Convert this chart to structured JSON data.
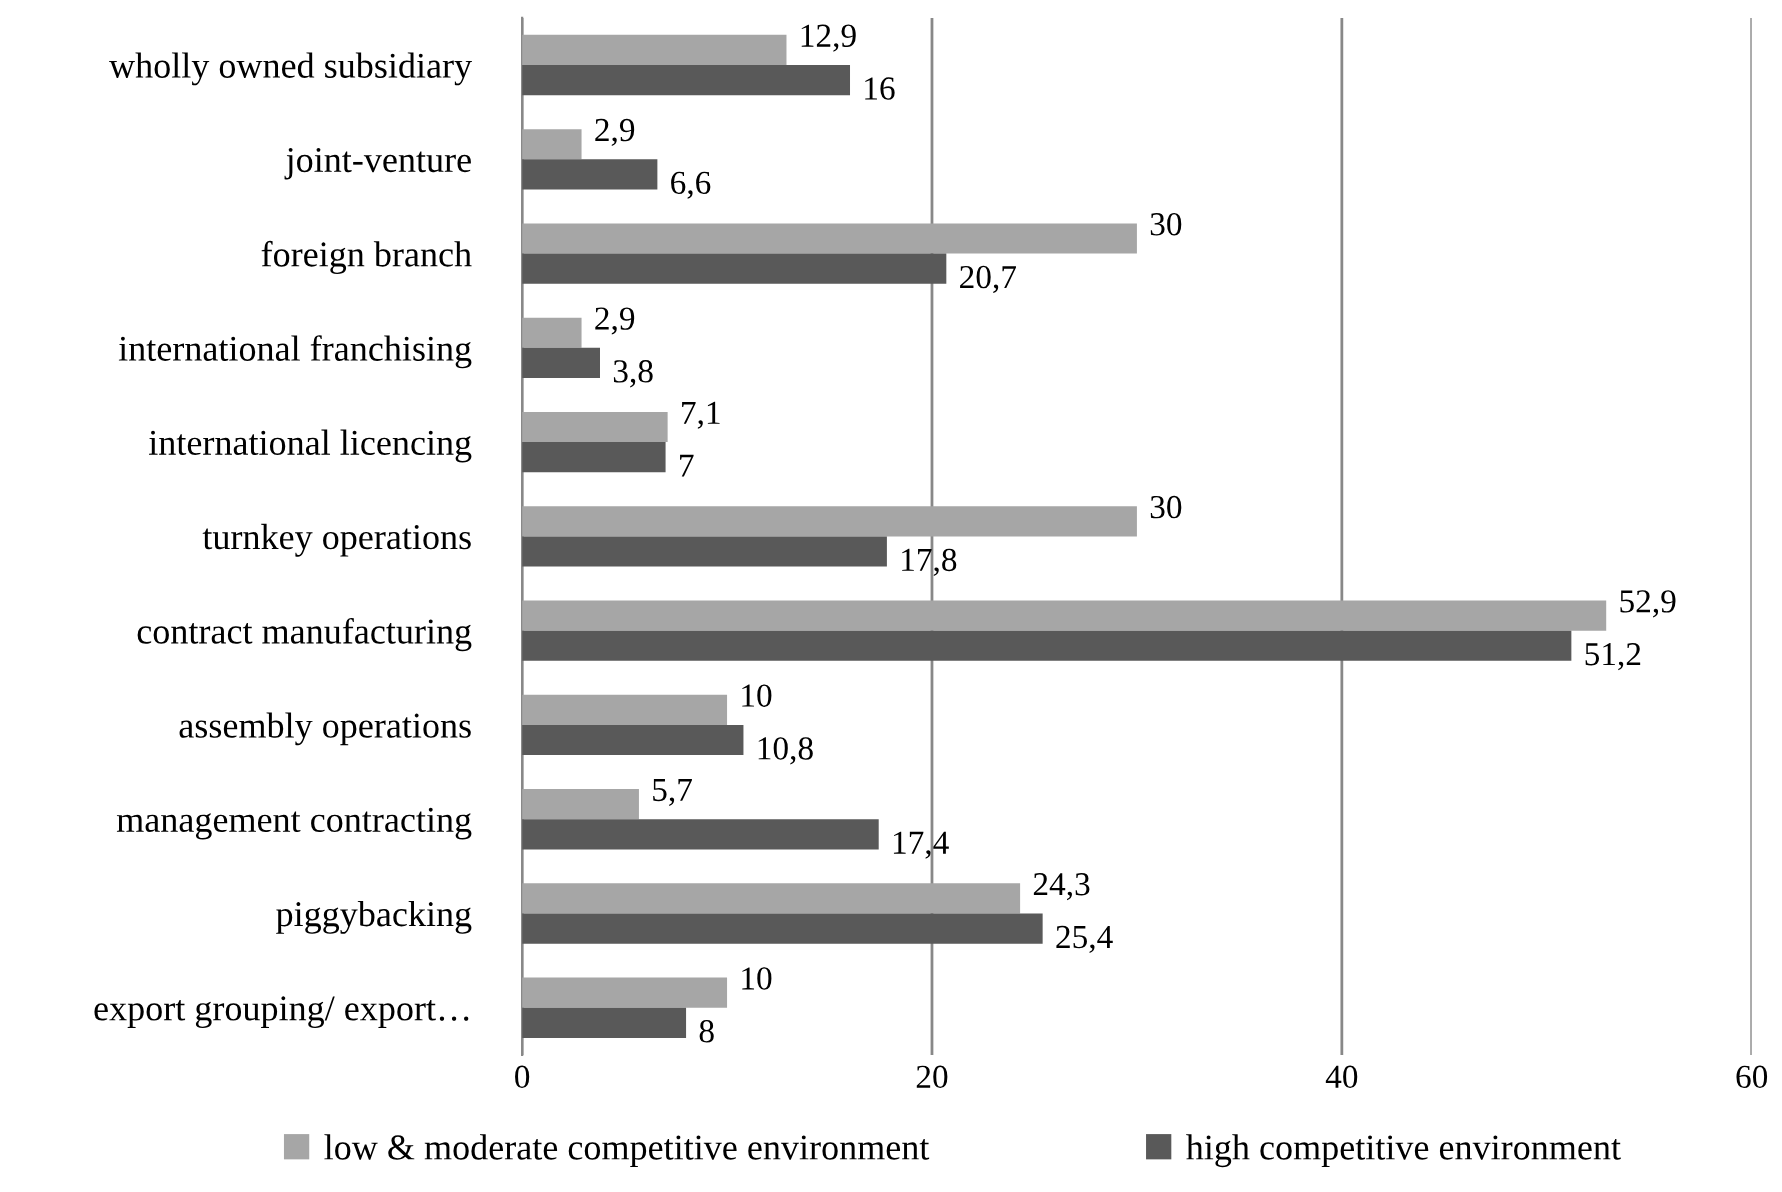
{
  "chart_data": {
    "type": "bar",
    "orientation": "horizontal",
    "categories": [
      "wholly owned subsidiary",
      "joint-venture",
      "foreign branch",
      "international franchising",
      "international licencing",
      "turnkey operations",
      "contract manufacturing",
      "assembly operations",
      "management contracting",
      "piggybacking",
      "export grouping/ export…"
    ],
    "series": [
      {
        "name": "low & moderate competitive environment",
        "color": "#a6a6a6",
        "values": [
          12.9,
          2.9,
          30,
          2.9,
          7.1,
          30,
          52.9,
          10,
          5.7,
          24.3,
          10
        ],
        "value_labels": [
          "12,9",
          "2,9",
          "30",
          "2,9",
          "7,1",
          "30",
          "52,9",
          "10",
          "5,7",
          "24,3",
          "10"
        ]
      },
      {
        "name": "high competitive environment",
        "color": "#595959",
        "values": [
          16,
          6.6,
          20.7,
          3.8,
          7,
          17.8,
          51.2,
          10.8,
          17.4,
          25.4,
          8
        ],
        "value_labels": [
          "16",
          "6,6",
          "20,7",
          "3,8",
          "7",
          "17,8",
          "51,2",
          "10,8",
          "17,4",
          "25,4",
          "8"
        ]
      }
    ],
    "xlim": [
      0,
      60
    ],
    "xticks": [
      0,
      20,
      40,
      60
    ],
    "grid": "x",
    "legend": "bottom"
  }
}
